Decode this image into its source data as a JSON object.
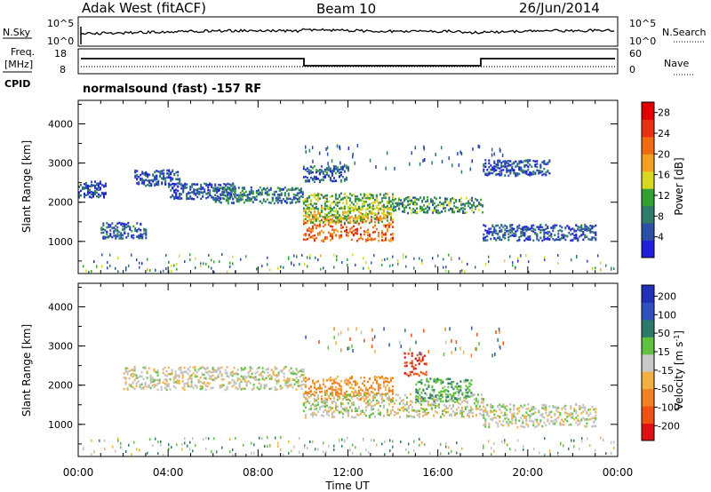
{
  "header": {
    "station": "Adak West (fitACF)",
    "beam": "Beam 10",
    "date": "26/Jun/2014"
  },
  "noise_panel": {
    "left_label": "N.Sky",
    "left_ticks": [
      "10^5",
      "10^0"
    ],
    "right_label": "N.Search",
    "right_ticks": [
      "10^5",
      "10^0"
    ]
  },
  "freq_panel": {
    "left_label_1": "Freq.",
    "left_label_2": "[MHz]",
    "left_ticks": [
      "18",
      "8"
    ],
    "right_label": "Nave",
    "right_ticks": [
      "60",
      "0"
    ]
  },
  "cpid": {
    "label": "CPID",
    "text": "normalsound (fast) -157 RF"
  },
  "colors": {
    "power_scale": [
      "#1f1fdc",
      "#2a4fa8",
      "#2f7a6a",
      "#33a033",
      "#d8d820",
      "#f2a020",
      "#f26a10",
      "#e83010",
      "#e00000"
    ],
    "velocity_scale": [
      "#2030b8",
      "#3050c0",
      "#2e7a6a",
      "#60c040",
      "#c8c8c8",
      "#f2b040",
      "#f28020",
      "#f05010",
      "#e01010"
    ],
    "ground_scatter": "#c0c0c0"
  },
  "chart_data": [
    {
      "type": "heatmap",
      "title": "Power",
      "xlabel": "",
      "ylabel": "Slant Range [km]",
      "xlim": [
        0,
        24
      ],
      "ylim": [
        180,
        4600
      ],
      "x_ticks": [
        "00:00",
        "04:00",
        "08:00",
        "12:00",
        "16:00",
        "20:00",
        "00:00"
      ],
      "y_ticks": [
        "1000",
        "2000",
        "3000",
        "4000"
      ],
      "colorbar": {
        "label": "Power [dB]",
        "ticks": [
          "4",
          "8",
          "12",
          "16",
          "20",
          "24",
          "28"
        ],
        "range": [
          0,
          30
        ]
      },
      "features": [
        {
          "t_start": 0.0,
          "t_end": 1.2,
          "range_km": 2350,
          "power_db": 5
        },
        {
          "t_start": 1.0,
          "t_end": 3.0,
          "range_km": 1300,
          "power_db": 6
        },
        {
          "t_start": 2.5,
          "t_end": 4.5,
          "range_km": 2650,
          "power_db": 5
        },
        {
          "t_start": 4.0,
          "t_end": 7.0,
          "range_km": 2300,
          "power_db": 5
        },
        {
          "t_start": 6.0,
          "t_end": 10.0,
          "range_km": 2200,
          "power_db": 8
        },
        {
          "t_start": 10.0,
          "t_end": 14.0,
          "range_km": 1350,
          "power_db": 22
        },
        {
          "t_start": 10.0,
          "t_end": 14.0,
          "range_km": 1700,
          "power_db": 14
        },
        {
          "t_start": 10.0,
          "t_end": 14.0,
          "range_km": 2050,
          "power_db": 12
        },
        {
          "t_start": 10.0,
          "t_end": 12.0,
          "range_km": 2750,
          "power_db": 6
        },
        {
          "t_start": 14.0,
          "t_end": 18.0,
          "range_km": 1950,
          "power_db": 10
        },
        {
          "t_start": 18.0,
          "t_end": 21.0,
          "range_km": 2900,
          "power_db": 5
        },
        {
          "t_start": 18.0,
          "t_end": 23.0,
          "range_km": 1250,
          "power_db": 5
        }
      ]
    },
    {
      "type": "heatmap",
      "title": "Velocity",
      "xlabel": "Time UT",
      "ylabel": "Slant Range [km]",
      "xlim": [
        0,
        24
      ],
      "ylim": [
        180,
        4600
      ],
      "x_ticks": [
        "00:00",
        "04:00",
        "08:00",
        "12:00",
        "16:00",
        "20:00",
        "00:00"
      ],
      "y_ticks": [
        "1000",
        "2000",
        "3000",
        "4000"
      ],
      "colorbar": {
        "label": "Velocity [m s^-1]",
        "ticks": [
          "200",
          "100",
          "50",
          "15",
          "-15",
          "-50",
          "-100",
          "-200"
        ],
        "range": [
          -250,
          250
        ]
      },
      "features": [
        {
          "t_start": 2.0,
          "t_end": 10.0,
          "range_km": 2200,
          "velocity": 0
        },
        {
          "t_start": 10.0,
          "t_end": 14.0,
          "range_km": 1950,
          "velocity": -60
        },
        {
          "t_start": 10.0,
          "t_end": 18.0,
          "range_km": 1500,
          "velocity": 0
        },
        {
          "t_start": 15.0,
          "t_end": 17.5,
          "range_km": 1900,
          "velocity": 40
        },
        {
          "t_start": 14.5,
          "t_end": 15.5,
          "range_km": 2550,
          "velocity": -200
        },
        {
          "t_start": 18.0,
          "t_end": 23.0,
          "range_km": 1250,
          "velocity": 0
        }
      ]
    }
  ]
}
